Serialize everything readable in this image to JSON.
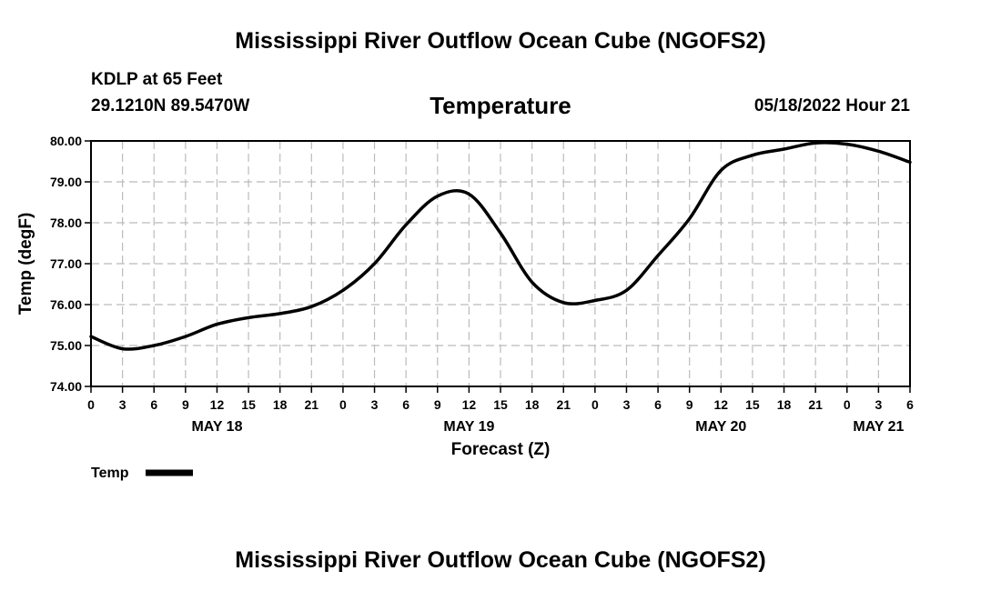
{
  "header": {
    "title": "Mississippi River Outflow Ocean Cube (NGOFS2)",
    "station": "KDLP at 65 Feet",
    "coords": "29.1210N  89.5470W",
    "variable": "Temperature",
    "datetime": "05/18/2022 Hour 21"
  },
  "footer": {
    "title": "Mississippi River Outflow Ocean Cube (NGOFS2)"
  },
  "colors": {
    "line": "#000000",
    "grid": "#bbbbbb",
    "background": "#ffffff"
  },
  "chart_data": {
    "type": "line",
    "ylabel": "Temp (degF)",
    "xlabel": "Forecast (Z)",
    "ylim": [
      74,
      80
    ],
    "xlim": [
      0,
      78
    ],
    "yticks": [
      "74.00",
      "75.00",
      "76.00",
      "77.00",
      "78.00",
      "79.00",
      "80.00"
    ],
    "xticks": [
      "0",
      "3",
      "6",
      "9",
      "12",
      "15",
      "18",
      "21",
      "0",
      "3",
      "6",
      "9",
      "12",
      "15",
      "18",
      "21",
      "0",
      "3",
      "6",
      "9",
      "12",
      "15",
      "18",
      "21",
      "0",
      "3",
      "6"
    ],
    "day_labels": [
      {
        "label": "MAY 18",
        "hour": 12
      },
      {
        "label": "MAY 19",
        "hour": 36
      },
      {
        "label": "MAY 20",
        "hour": 60
      },
      {
        "label": "MAY 21",
        "hour": 75
      }
    ],
    "grid": true,
    "legend": "bottom-left",
    "series": [
      {
        "name": "Temp",
        "x": [
          0,
          3,
          6,
          9,
          12,
          15,
          18,
          21,
          24,
          27,
          30,
          33,
          36,
          39,
          42,
          45,
          48,
          51,
          54,
          57,
          60,
          63,
          66,
          69,
          72,
          75,
          78
        ],
        "y": [
          75.22,
          74.92,
          75.0,
          75.22,
          75.52,
          75.68,
          75.78,
          75.95,
          76.35,
          77.0,
          77.95,
          78.65,
          78.7,
          77.75,
          76.55,
          76.05,
          76.1,
          76.35,
          77.2,
          78.1,
          79.28,
          79.65,
          79.8,
          79.95,
          79.92,
          79.75,
          79.48
        ]
      }
    ]
  }
}
